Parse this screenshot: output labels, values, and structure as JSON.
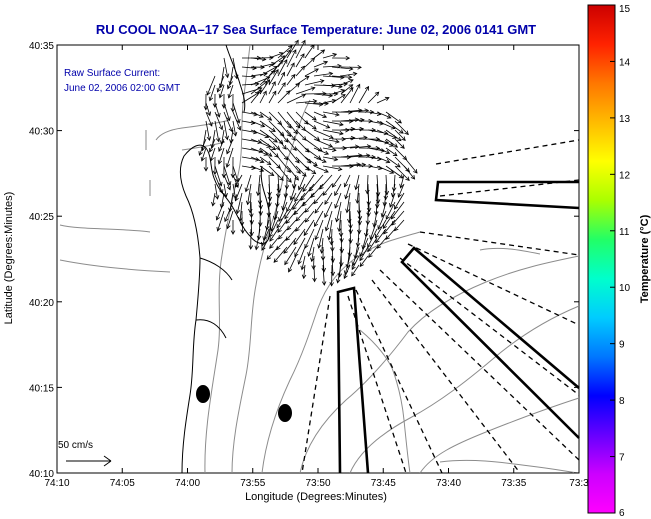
{
  "title": "RU COOL  NOAA–17  Sea Surface Temperature:  June 02, 2006 0141 GMT",
  "annotation": {
    "line1": "Raw Surface Current:",
    "line2": "June 02, 2006 02:00 GMT"
  },
  "scale": {
    "label": "50 cm/s"
  },
  "axes": {
    "xlabel": "Longitude (Degrees:Minutes)",
    "ylabel": "Latitude (Degrees:Minutes)",
    "xticks": [
      "74:10",
      "74:05",
      "74:00",
      "73:55",
      "73:50",
      "73:45",
      "73:40",
      "73:35",
      "73:3"
    ],
    "yticks": [
      "40:35",
      "40:30",
      "40:25",
      "40:20",
      "40:15",
      "40:10"
    ]
  },
  "colorbar": {
    "label": "Temperature (°C)",
    "ticks": [
      "15",
      "14",
      "13",
      "12",
      "11",
      "10",
      "9",
      "8",
      "7",
      "6"
    ],
    "colors": [
      "#cc0000",
      "#ff2200",
      "#ff7700",
      "#ffbb00",
      "#ffff00",
      "#aaff00",
      "#22ff66",
      "#00ffcc",
      "#00ccff",
      "#0077ff",
      "#0000ff",
      "#6600ff",
      "#cc00ff",
      "#ff00ff"
    ]
  }
}
